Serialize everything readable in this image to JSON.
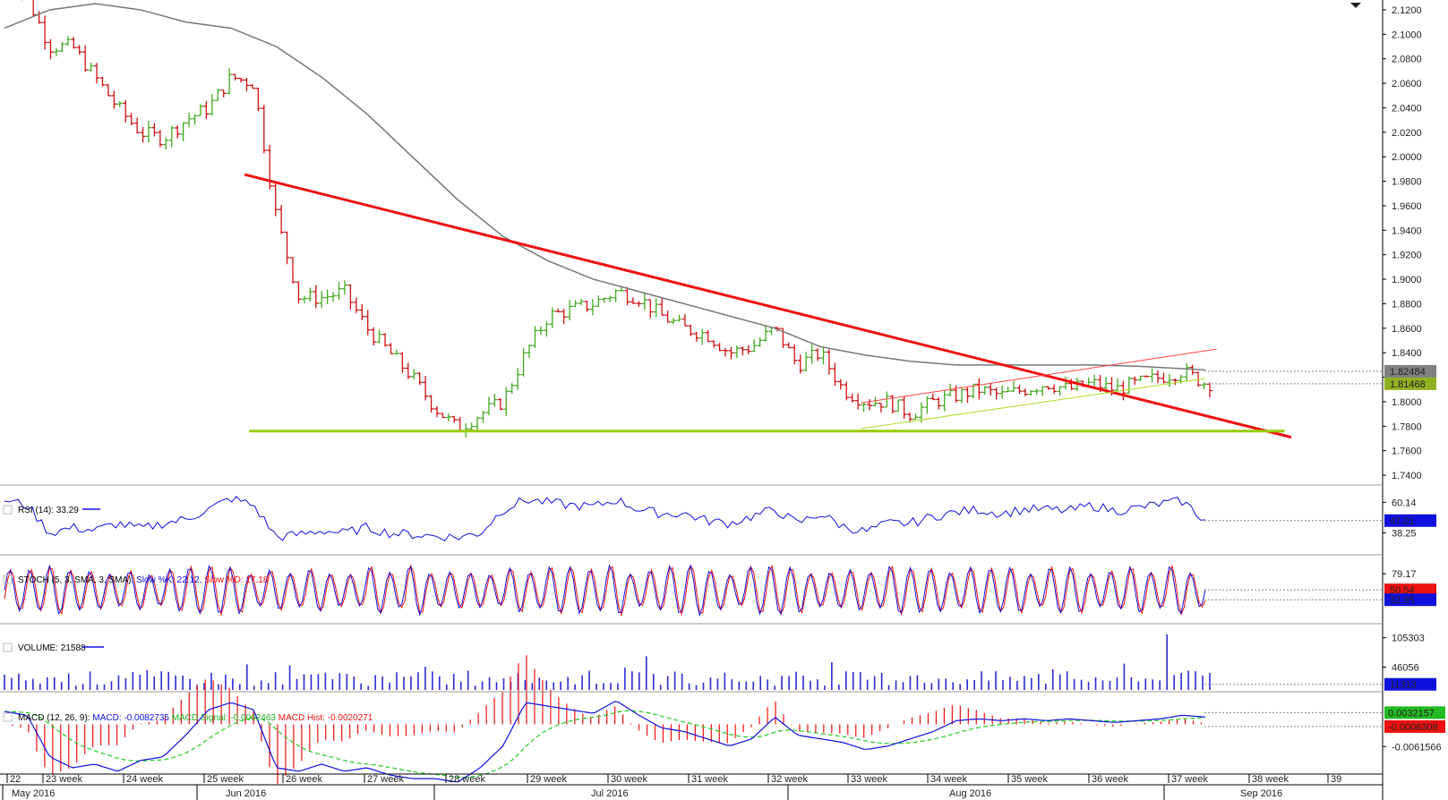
{
  "chart_data": [
    {
      "panel": "price",
      "type": "candlestick",
      "yticks": [
        2.12,
        2.1,
        2.08,
        2.06,
        2.04,
        2.02,
        2.0,
        1.98,
        1.96,
        1.94,
        1.92,
        1.9,
        1.88,
        1.86,
        1.84,
        1.82,
        1.8,
        1.78,
        1.76,
        1.74
      ],
      "ytick_labels": [
        "2.1200",
        "2.1000",
        "2.0800",
        "2.0600",
        "2.0400",
        "2.0200",
        "2.0000",
        "1.9800",
        "1.9600",
        "1.9400",
        "1.9200",
        "1.9000",
        "1.8800",
        "1.8600",
        "1.8400",
        "1.8200",
        "1.8000",
        "1.7800",
        "1.7600",
        "1.7400"
      ],
      "ylim": [
        1.732,
        2.128
      ],
      "close_path": [
        {
          "t": 0,
          "v": 2.145
        },
        {
          "t": 1,
          "v": 2.13
        },
        {
          "t": 2,
          "v": 2.09
        },
        {
          "t": 3,
          "v": 2.09
        },
        {
          "t": 4,
          "v": 2.065
        },
        {
          "t": 5,
          "v": 2.04
        },
        {
          "t": 6,
          "v": 2.02
        },
        {
          "t": 7,
          "v": 2.015
        },
        {
          "t": 8,
          "v": 2.03
        },
        {
          "t": 9,
          "v": 2.04
        },
        {
          "t": 10,
          "v": 2.065
        },
        {
          "t": 11,
          "v": 2.06
        },
        {
          "t": 12,
          "v": 1.95
        },
        {
          "t": 13,
          "v": 1.885
        },
        {
          "t": 14,
          "v": 1.885
        },
        {
          "t": 15,
          "v": 1.89
        },
        {
          "t": 16,
          "v": 1.86
        },
        {
          "t": 17,
          "v": 1.84
        },
        {
          "t": 18,
          "v": 1.82
        },
        {
          "t": 19,
          "v": 1.795
        },
        {
          "t": 20,
          "v": 1.778
        },
        {
          "t": 21,
          "v": 1.79
        },
        {
          "t": 22,
          "v": 1.8
        },
        {
          "t": 23,
          "v": 1.84
        },
        {
          "t": 24,
          "v": 1.87
        },
        {
          "t": 25,
          "v": 1.875
        },
        {
          "t": 26,
          "v": 1.88
        },
        {
          "t": 27,
          "v": 1.89
        },
        {
          "t": 28,
          "v": 1.885
        },
        {
          "t": 29,
          "v": 1.87
        },
        {
          "t": 30,
          "v": 1.86
        },
        {
          "t": 31,
          "v": 1.855
        },
        {
          "t": 32,
          "v": 1.84
        },
        {
          "t": 33,
          "v": 1.845
        },
        {
          "t": 34,
          "v": 1.86
        },
        {
          "t": 35,
          "v": 1.83
        },
        {
          "t": 36,
          "v": 1.84
        },
        {
          "t": 37,
          "v": 1.81
        },
        {
          "t": 38,
          "v": 1.8
        },
        {
          "t": 39,
          "v": 1.8
        },
        {
          "t": 40,
          "v": 1.79
        },
        {
          "t": 41,
          "v": 1.8
        },
        {
          "t": 42,
          "v": 1.805
        },
        {
          "t": 43,
          "v": 1.81
        },
        {
          "t": 44,
          "v": 1.805
        },
        {
          "t": 45,
          "v": 1.81
        },
        {
          "t": 46,
          "v": 1.815
        },
        {
          "t": 47,
          "v": 1.81
        },
        {
          "t": 48,
          "v": 1.815
        },
        {
          "t": 49,
          "v": 1.81
        },
        {
          "t": 50,
          "v": 1.815
        },
        {
          "t": 51,
          "v": 1.82
        },
        {
          "t": 52,
          "v": 1.825
        },
        {
          "t": 53,
          "v": 1.815
        }
      ],
      "moving_average": [
        {
          "t": 0,
          "v": 2.105
        },
        {
          "t": 2,
          "v": 2.12
        },
        {
          "t": 4,
          "v": 2.125
        },
        {
          "t": 6,
          "v": 2.12
        },
        {
          "t": 8,
          "v": 2.11
        },
        {
          "t": 10,
          "v": 2.105
        },
        {
          "t": 12,
          "v": 2.09
        },
        {
          "t": 14,
          "v": 2.065
        },
        {
          "t": 16,
          "v": 2.035
        },
        {
          "t": 18,
          "v": 2.0
        },
        {
          "t": 20,
          "v": 1.965
        },
        {
          "t": 22,
          "v": 1.935
        },
        {
          "t": 24,
          "v": 1.915
        },
        {
          "t": 26,
          "v": 1.9
        },
        {
          "t": 28,
          "v": 1.89
        },
        {
          "t": 30,
          "v": 1.88
        },
        {
          "t": 32,
          "v": 1.87
        },
        {
          "t": 34,
          "v": 1.86
        },
        {
          "t": 36,
          "v": 1.845
        },
        {
          "t": 38,
          "v": 1.838
        },
        {
          "t": 40,
          "v": 1.833
        },
        {
          "t": 42,
          "v": 1.83
        },
        {
          "t": 44,
          "v": 1.83
        },
        {
          "t": 46,
          "v": 1.83
        },
        {
          "t": 48,
          "v": 1.83
        },
        {
          "t": 50,
          "v": 1.829
        },
        {
          "t": 52,
          "v": 1.827
        },
        {
          "t": 53,
          "v": 1.826
        }
      ],
      "trendlines": [
        {
          "color": "#ee1111",
          "from": {
            "t": 10.6,
            "v": 1.9855
          },
          "to": {
            "t": 56.8,
            "v": 1.771
          },
          "width": 3
        },
        {
          "color": "#99cc00",
          "from": {
            "t": 10.8,
            "v": 1.776
          },
          "to": {
            "t": 56.5,
            "v": 1.776
          },
          "width": 3
        },
        {
          "color": "#ff4444",
          "from": {
            "t": 37.8,
            "v": 1.799
          },
          "to": {
            "t": 53.5,
            "v": 1.843
          },
          "width": 1
        },
        {
          "color": "#aadd22",
          "from": {
            "t": 37.8,
            "v": 1.778
          },
          "to": {
            "t": 53,
            "v": 1.819
          },
          "width": 1
        }
      ],
      "price_tags": [
        {
          "label": "1.82484",
          "value": 1.82484,
          "bg": "#808080",
          "fg": "#ffffff"
        },
        {
          "label": "1.81468",
          "value": 1.81468,
          "bg": "#8fb020",
          "fg": "#ffffff"
        }
      ]
    },
    {
      "panel": "rsi",
      "type": "line",
      "title": "RSI (14): 33.29",
      "ylim": [
        25,
        70
      ],
      "yticks": [
        60.14,
        38.25
      ],
      "ytick_labels": [
        "60.14",
        "38.25"
      ],
      "series_color": "#1010dd",
      "points": [
        {
          "t": 0,
          "v": 62
        },
        {
          "t": 1,
          "v": 58
        },
        {
          "t": 2,
          "v": 38
        },
        {
          "t": 3,
          "v": 42
        },
        {
          "t": 4,
          "v": 40
        },
        {
          "t": 5,
          "v": 45
        },
        {
          "t": 6,
          "v": 41
        },
        {
          "t": 7,
          "v": 45
        },
        {
          "t": 8,
          "v": 48
        },
        {
          "t": 9,
          "v": 55
        },
        {
          "t": 10,
          "v": 63
        },
        {
          "t": 11,
          "v": 58
        },
        {
          "t": 12,
          "v": 35
        },
        {
          "t": 13,
          "v": 37
        },
        {
          "t": 14,
          "v": 40
        },
        {
          "t": 15,
          "v": 38
        },
        {
          "t": 16,
          "v": 42
        },
        {
          "t": 17,
          "v": 38
        },
        {
          "t": 18,
          "v": 37
        },
        {
          "t": 19,
          "v": 36
        },
        {
          "t": 20,
          "v": 35
        },
        {
          "t": 21,
          "v": 38
        },
        {
          "t": 22,
          "v": 55
        },
        {
          "t": 23,
          "v": 62
        },
        {
          "t": 24,
          "v": 60
        },
        {
          "t": 25,
          "v": 58
        },
        {
          "t": 26,
          "v": 57
        },
        {
          "t": 27,
          "v": 62
        },
        {
          "t": 28,
          "v": 55
        },
        {
          "t": 29,
          "v": 52
        },
        {
          "t": 30,
          "v": 52
        },
        {
          "t": 31,
          "v": 47
        },
        {
          "t": 32,
          "v": 45
        },
        {
          "t": 33,
          "v": 50
        },
        {
          "t": 34,
          "v": 55
        },
        {
          "t": 35,
          "v": 45
        },
        {
          "t": 36,
          "v": 52
        },
        {
          "t": 37,
          "v": 43
        },
        {
          "t": 38,
          "v": 39
        },
        {
          "t": 39,
          "v": 45
        },
        {
          "t": 40,
          "v": 45
        },
        {
          "t": 41,
          "v": 50
        },
        {
          "t": 42,
          "v": 53
        },
        {
          "t": 43,
          "v": 55
        },
        {
          "t": 44,
          "v": 52
        },
        {
          "t": 45,
          "v": 55
        },
        {
          "t": 46,
          "v": 55
        },
        {
          "t": 47,
          "v": 54
        },
        {
          "t": 48,
          "v": 58
        },
        {
          "t": 49,
          "v": 54
        },
        {
          "t": 50,
          "v": 56
        },
        {
          "t": 51,
          "v": 59
        },
        {
          "t": 52,
          "v": 61
        },
        {
          "t": 53,
          "v": 47
        }
      ],
      "tags": [
        {
          "label": "47.01",
          "value": 47.01,
          "bg": "#1010dd",
          "fg": "#ffffff"
        }
      ]
    },
    {
      "panel": "stoch",
      "type": "line",
      "title": "STOCH (5, 3, SMA, 3, SMA): Slow %K: 22.12, Slow %D: 17.18",
      "ylim": [
        0,
        100
      ],
      "yticks": [
        79.17
      ],
      "ytick_labels": [
        "79.17"
      ],
      "series": [
        {
          "name": "Slow %K",
          "color": "#1010dd"
        },
        {
          "name": "Slow %D",
          "color": "#ee1111"
        }
      ],
      "cycles": 60,
      "tags": [
        {
          "label": "50.54",
          "value": 50.54,
          "bg": "#ee1111",
          "fg": "#ffffff"
        },
        {
          "label": "32.95",
          "value": 32.95,
          "bg": "#1010dd",
          "fg": "#ffffff"
        }
      ]
    },
    {
      "panel": "volume",
      "type": "bar",
      "title": "VOLUME: 21588",
      "ylim": [
        0,
        130000
      ],
      "yticks": [
        105303,
        46056
      ],
      "ytick_labels": [
        "105303",
        "46056"
      ],
      "bar_color": "#2a2ad0",
      "bar_count": 170,
      "tags": [
        {
          "label": "11313",
          "value": 11313,
          "bg": "#1010dd",
          "fg": "#ffffff"
        }
      ]
    },
    {
      "panel": "macd",
      "type": "line+histogram",
      "title": "MACD (12, 26, 9):",
      "legend": [
        {
          "text": "MACD: -0.0082735",
          "color": "#1010dd"
        },
        {
          "text": "MACD Signal: -0.0062463",
          "color": "#22aa22"
        },
        {
          "text": "MACD Hist: -0.0020271",
          "color": "#ee1111"
        }
      ],
      "ylim": [
        -0.013,
        0.008
      ],
      "yticks": [
        -0.0061566
      ],
      "ytick_labels": [
        "-0.0061566"
      ],
      "points": [
        {
          "t": 0,
          "v": 0.0035
        },
        {
          "t": 1,
          "v": 0.0025
        },
        {
          "t": 2,
          "v": -0.009
        },
        {
          "t": 3,
          "v": -0.012
        },
        {
          "t": 4,
          "v": -0.011
        },
        {
          "t": 5,
          "v": -0.013
        },
        {
          "t": 6,
          "v": -0.01
        },
        {
          "t": 7,
          "v": -0.009
        },
        {
          "t": 8,
          "v": -0.003
        },
        {
          "t": 9,
          "v": 0.004
        },
        {
          "t": 10,
          "v": 0.006
        },
        {
          "t": 11,
          "v": 0.004
        },
        {
          "t": 12,
          "v": -0.012
        },
        {
          "t": 13,
          "v": -0.013
        },
        {
          "t": 14,
          "v": -0.011
        },
        {
          "t": 15,
          "v": -0.013
        },
        {
          "t": 16,
          "v": -0.012
        },
        {
          "t": 17,
          "v": -0.014
        },
        {
          "t": 18,
          "v": -0.015
        },
        {
          "t": 19,
          "v": -0.015
        },
        {
          "t": 20,
          "v": -0.016
        },
        {
          "t": 21,
          "v": -0.012
        },
        {
          "t": 22,
          "v": -0.006
        },
        {
          "t": 23,
          "v": 0.006
        },
        {
          "t": 24,
          "v": 0.005
        },
        {
          "t": 25,
          "v": 0.004
        },
        {
          "t": 26,
          "v": 0.003
        },
        {
          "t": 27,
          "v": 0.0065
        },
        {
          "t": 28,
          "v": 0.0025
        },
        {
          "t": 29,
          "v": -0.001
        },
        {
          "t": 30,
          "v": -0.002
        },
        {
          "t": 31,
          "v": -0.004
        },
        {
          "t": 32,
          "v": -0.006
        },
        {
          "t": 33,
          "v": -0.004
        },
        {
          "t": 34,
          "v": 0.002
        },
        {
          "t": 35,
          "v": -0.003
        },
        {
          "t": 36,
          "v": -0.004
        },
        {
          "t": 37,
          "v": -0.005
        },
        {
          "t": 38,
          "v": -0.007
        },
        {
          "t": 39,
          "v": -0.006
        },
        {
          "t": 40,
          "v": -0.004
        },
        {
          "t": 41,
          "v": -0.002
        },
        {
          "t": 42,
          "v": 0.001
        },
        {
          "t": 43,
          "v": 0.0015
        },
        {
          "t": 44,
          "v": 0.001
        },
        {
          "t": 45,
          "v": 0.0015
        },
        {
          "t": 46,
          "v": 0.001
        },
        {
          "t": 47,
          "v": 0.0015
        },
        {
          "t": 48,
          "v": 0.001
        },
        {
          "t": 49,
          "v": 0.0005
        },
        {
          "t": 50,
          "v": 0.001
        },
        {
          "t": 51,
          "v": 0.0015
        },
        {
          "t": 52,
          "v": 0.0025
        },
        {
          "t": 53,
          "v": 0.002
        }
      ],
      "tags": [
        {
          "label": "0.0032157",
          "value": 0.0032157,
          "bg": "#22bb22",
          "fg": "#000000"
        },
        {
          "label": "-0.0006308",
          "value": -0.0006308,
          "bg": "#ee1111",
          "fg": "#ffffff"
        }
      ]
    }
  ],
  "x_axis": {
    "week_labels": [
      "22",
      "23 week",
      "24 week",
      "25 week",
      "26 week",
      "27 week",
      "28 week",
      "29 week",
      "30 week",
      "31 week",
      "32 week",
      "33 week",
      "34 week",
      "35 week",
      "36 week",
      "37 week",
      "38 week",
      "39"
    ],
    "month_labels": [
      "May 2016",
      "Jun 2016",
      "Jul 2016",
      "Aug 2016",
      "Sep 2016"
    ]
  },
  "colors": {
    "up": "#44aa22",
    "down": "#cc1111",
    "ma": "#777777",
    "grid_dash": "#888888"
  },
  "icons": {
    "collapse": "triangle-down-icon"
  }
}
